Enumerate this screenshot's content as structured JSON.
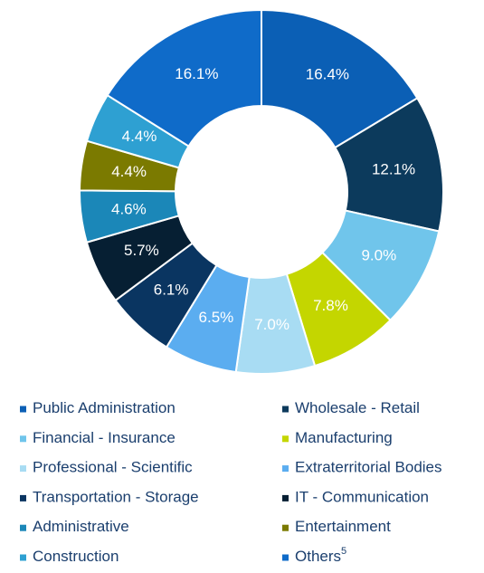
{
  "chart_data": {
    "type": "donut",
    "categories": [
      "Public Administration",
      "Wholesale - Retail",
      "Financial - Insurance",
      "Manufacturing",
      "Professional - Scientific",
      "Extraterritorial Bodies",
      "Transportation - Storage",
      "IT - Communication",
      "Administrative",
      "Entertainment",
      "Construction",
      "Others"
    ],
    "superscripts": [
      null,
      null,
      null,
      null,
      null,
      null,
      null,
      null,
      null,
      null,
      null,
      "5"
    ],
    "values": [
      16.4,
      12.1,
      9.0,
      7.8,
      7.0,
      6.5,
      6.1,
      5.7,
      4.6,
      4.4,
      4.4,
      16.1
    ],
    "value_labels": [
      "16.4%",
      "12.1%",
      "9.0%",
      "7.8%",
      "7.0%",
      "6.5%",
      "6.1%",
      "5.7%",
      "4.6%",
      "4.4%",
      "4.4%",
      "16.1%"
    ],
    "colors": [
      "#0b5fb5",
      "#0c3a5c",
      "#70c5eb",
      "#c4d600",
      "#a8dcf3",
      "#5badf0",
      "#0a3561",
      "#061f33",
      "#1b87b8",
      "#7b7a00",
      "#2ea0d2",
      "#0f6bc9"
    ],
    "legend": "bottom"
  }
}
